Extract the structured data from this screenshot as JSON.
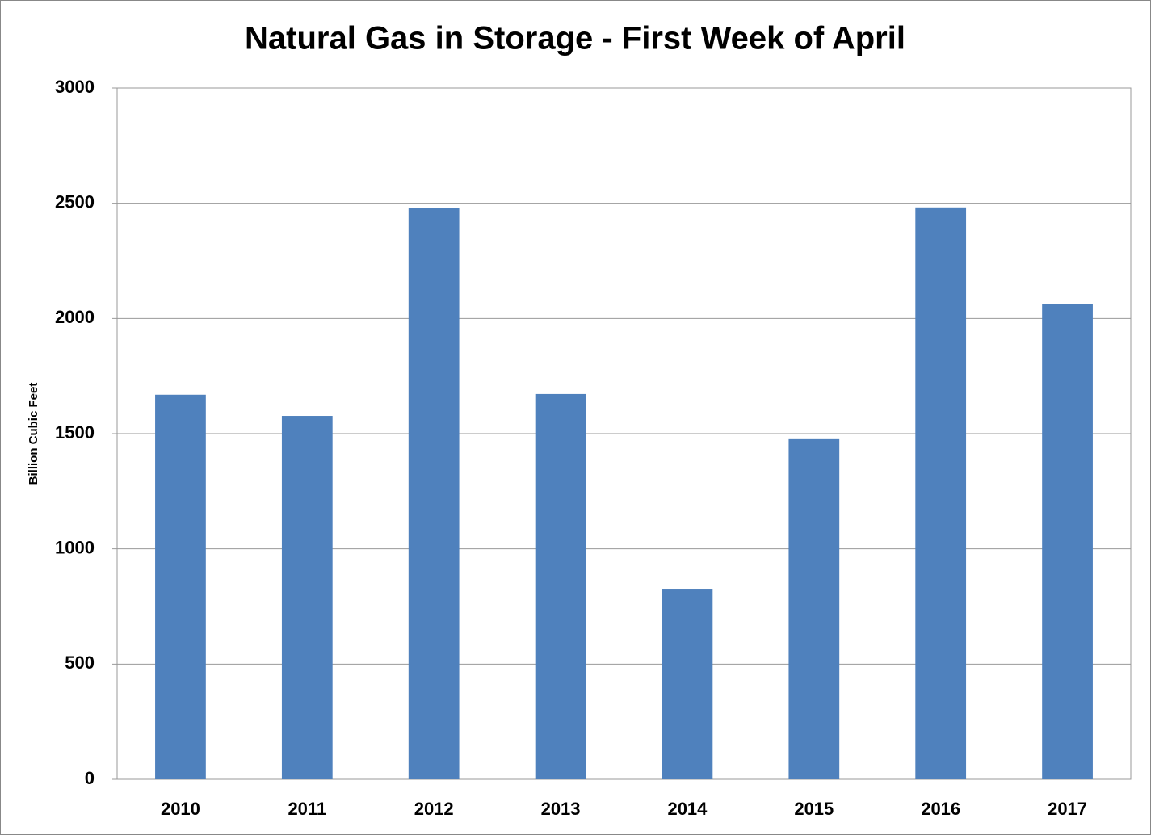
{
  "chart_data": {
    "type": "bar",
    "title": "Natural Gas in Storage - First Week of April",
    "y_label": "Billion Cubic Feet",
    "categories": [
      "2010",
      "2011",
      "2012",
      "2013",
      "2014",
      "2015",
      "2016",
      "2017"
    ],
    "values": [
      1669,
      1577,
      2478,
      1672,
      827,
      1476,
      2482,
      2061
    ],
    "color": "#4f81bd",
    "ylim": [
      0,
      3000
    ],
    "yticks": [
      0,
      500,
      1000,
      1500,
      2000,
      2500,
      3000
    ],
    "grid": true
  }
}
